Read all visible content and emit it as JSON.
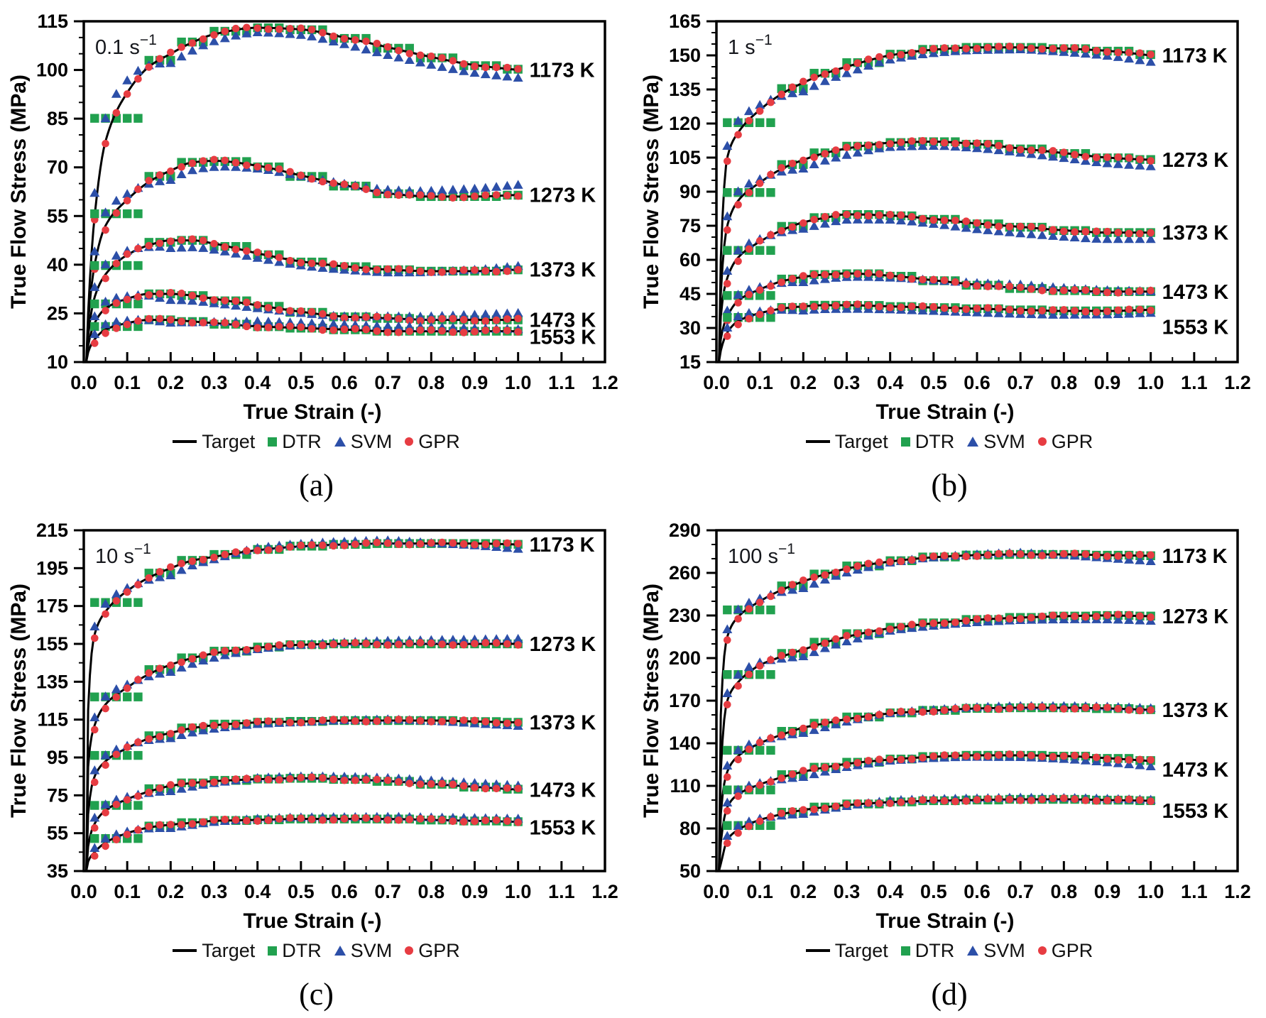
{
  "figure": {
    "background": "#ffffff",
    "ylabel": "True Flow Stress (MPa)",
    "xlabel": "True Strain (-)",
    "legend": [
      "Target",
      "DTR",
      "SVM",
      "GPR"
    ],
    "temperatures": [
      "1173 K",
      "1273 K",
      "1373 K",
      "1473 K",
      "1553 K"
    ],
    "colors": {
      "target": "#000000",
      "dtr": "#21A14F",
      "svm": "#2C4FA8",
      "gpr": "#E73C42"
    },
    "captions": [
      "(a)",
      "(b)",
      "(c)",
      "(d)"
    ],
    "marker_start": 0.025,
    "marker_step": 0.025,
    "marker_end": 1.0,
    "control_strains": [
      0.01,
      0.025,
      0.05,
      0.1,
      0.15,
      0.2,
      0.25,
      0.3,
      0.4,
      0.5,
      0.6,
      0.7,
      0.8,
      0.9,
      1.0
    ],
    "dtr_bin_edges": [
      0.02,
      0.14,
      0.22,
      0.3,
      0.38,
      0.47,
      0.57,
      0.67,
      0.77,
      0.87,
      0.97,
      1.005
    ],
    "svm_dev_strains": [
      0.05,
      0.2,
      0.4,
      0.7,
      1.0
    ]
  },
  "chart_data": [
    {
      "type": "line",
      "panel": "a",
      "caption": "(a)",
      "strain_rate": {
        "base": "0.1 s",
        "exp": "−1"
      },
      "xlabel": "True Strain (-)",
      "ylabel": "True Flow Stress (MPa)",
      "xlim": [
        0.0,
        1.2
      ],
      "xstep": 0.1,
      "x_minor_step": 0.05,
      "ylim": [
        10,
        115
      ],
      "ystep": 15,
      "y_minor_step": 5,
      "legend": [
        "Target",
        "DTR",
        "SVM",
        "GPR"
      ],
      "gpr_dip": 1.5,
      "gpr_amp": 0.4,
      "series": [
        {
          "temperature": "1173 K",
          "label_dy": 0,
          "target": [
            25,
            55,
            78,
            93,
            101,
            105,
            108.5,
            111,
            113,
            112.5,
            110,
            107,
            104,
            101.5,
            100
          ],
          "svm_dev": [
            7,
            -3,
            -1.5,
            -2.5,
            -2.5
          ]
        },
        {
          "temperature": "1273 K",
          "label_dy": 0,
          "target": [
            22,
            40,
            52,
            60,
            65.5,
            69,
            71.5,
            72,
            70.5,
            67.5,
            64.5,
            62,
            61,
            61,
            61.5
          ],
          "svm_dev": [
            4,
            -3,
            -1,
            1,
            3
          ]
        },
        {
          "temperature": "1373 K",
          "label_dy": 0,
          "target": [
            18,
            30,
            37,
            43,
            46,
            47.5,
            47.5,
            46.5,
            43.5,
            41,
            39.5,
            38.5,
            38,
            38,
            38.5
          ],
          "svm_dev": [
            3,
            -2.5,
            -1.5,
            -1,
            1
          ]
        },
        {
          "temperature": "1473 K",
          "label_dy": 0,
          "target": [
            15,
            22,
            26.5,
            29.5,
            31,
            31,
            30.5,
            29.5,
            27.5,
            25.5,
            24,
            23.5,
            23,
            23,
            23
          ],
          "svm_dev": [
            2,
            -2,
            -1,
            0.5,
            2
          ]
        },
        {
          "temperature": "1553 K",
          "label_dy": 8,
          "target": [
            13,
            17,
            20,
            22,
            23,
            23,
            22.5,
            22,
            21,
            20.5,
            20,
            19.5,
            19.5,
            19.5,
            19.5
          ],
          "svm_dev": [
            1.5,
            -1,
            1.5,
            1.5,
            0.5
          ]
        }
      ]
    },
    {
      "type": "line",
      "panel": "b",
      "caption": "(b)",
      "strain_rate": {
        "base": "1 s",
        "exp": "−1"
      },
      "xlabel": "True Strain (-)",
      "ylabel": "True Flow Stress (MPa)",
      "xlim": [
        0.0,
        1.2
      ],
      "xstep": 0.1,
      "x_minor_step": 0.05,
      "ylim": [
        15,
        165
      ],
      "ystep": 15,
      "y_minor_step": 5,
      "legend": [
        "Target",
        "DTR",
        "SVM",
        "GPR"
      ],
      "gpr_dip": 2,
      "gpr_amp": 0.5,
      "series": [
        {
          "temperature": "1173 K",
          "label_dy": 0,
          "target": [
            60,
            105,
            116,
            126,
            133,
            138,
            142,
            145,
            150,
            152.5,
            153.5,
            153.5,
            153,
            152,
            150
          ],
          "svm_dev": [
            5,
            -4,
            -2,
            -1,
            -3
          ]
        },
        {
          "temperature": "1273 K",
          "label_dy": 0,
          "target": [
            45,
            75,
            86,
            94,
            100,
            104,
            107,
            109,
            111.5,
            112,
            111,
            109,
            107,
            105,
            104
          ],
          "svm_dev": [
            4,
            -4,
            -2,
            -2,
            -3
          ]
        },
        {
          "temperature": "1373 K",
          "label_dy": 0,
          "target": [
            35,
            52,
            61,
            68,
            73,
            76.5,
            78.5,
            80,
            79.5,
            78,
            76,
            74.5,
            73,
            72,
            72
          ],
          "svm_dev": [
            3,
            -3,
            -2,
            -3,
            -3
          ]
        },
        {
          "temperature": "1473 K",
          "label_dy": 0,
          "target": [
            25,
            35,
            42,
            47,
            50.5,
            52.5,
            53.5,
            54,
            53,
            51,
            49,
            47.5,
            46.5,
            46,
            46
          ],
          "svm_dev": [
            2.5,
            -2.5,
            -1,
            1.5,
            0
          ]
        },
        {
          "temperature": "1553 K",
          "label_dy": 24,
          "target": [
            20,
            28,
            33,
            36.5,
            38.5,
            39.5,
            40,
            40,
            39.5,
            39,
            38.5,
            38,
            37.5,
            37.5,
            38
          ],
          "svm_dev": [
            2,
            -2,
            -1.5,
            -2,
            -1.5
          ]
        }
      ]
    },
    {
      "type": "line",
      "panel": "c",
      "caption": "(c)",
      "strain_rate": {
        "base": "10 s",
        "exp": "−1"
      },
      "xlabel": "True Strain (-)",
      "ylabel": "True Flow Stress (MPa)",
      "xlim": [
        0.0,
        1.2
      ],
      "xstep": 0.1,
      "x_minor_step": 0.05,
      "ylim": [
        35,
        215
      ],
      "ystep": 20,
      "y_minor_step": 10,
      "legend": [
        "Target",
        "DTR",
        "SVM",
        "GPR"
      ],
      "gpr_dip": 2.5,
      "gpr_amp": 0.6,
      "series": [
        {
          "temperature": "1173 K",
          "label_dy": 0,
          "target": [
            120,
            160,
            172,
            183,
            190,
            195,
            199,
            201,
            204.5,
            206.5,
            207.5,
            208,
            208,
            208,
            207.5
          ],
          "svm_dev": [
            4,
            -4,
            1,
            1.5,
            -2.5
          ]
        },
        {
          "temperature": "1273 K",
          "label_dy": 0,
          "target": [
            90,
            112,
            123,
            132,
            139,
            144,
            147.5,
            150,
            153,
            154.5,
            155,
            155,
            155,
            155,
            155
          ],
          "svm_dev": [
            4,
            -4,
            -1,
            1.5,
            2.5
          ]
        },
        {
          "temperature": "1373 K",
          "label_dy": 0,
          "target": [
            65,
            85,
            93,
            100,
            105,
            108,
            110.5,
            112,
            113.5,
            114,
            114.5,
            114.5,
            114.5,
            114,
            113.5
          ],
          "svm_dev": [
            3,
            -3,
            -1,
            0.5,
            -2
          ]
        },
        {
          "temperature": "1473 K",
          "label_dy": 0,
          "target": [
            48,
            60,
            67,
            73,
            77,
            80,
            81.5,
            82.5,
            83.5,
            84,
            83.5,
            82.5,
            81,
            79.5,
            78
          ],
          "svm_dev": [
            3,
            -3,
            0.5,
            1.5,
            2
          ]
        },
        {
          "temperature": "1553 K",
          "label_dy": 8,
          "target": [
            40,
            45,
            50,
            55,
            58,
            59.5,
            60.5,
            61.5,
            62,
            62.5,
            62.5,
            62.5,
            62,
            61.5,
            61
          ],
          "svm_dev": [
            2,
            -2,
            0.5,
            1,
            1.5
          ]
        }
      ]
    },
    {
      "type": "line",
      "panel": "d",
      "caption": "(d)",
      "strain_rate": {
        "base": "100 s",
        "exp": "−1"
      },
      "xlabel": "True Strain (-)",
      "ylabel": "True Flow Stress (MPa)",
      "xlim": [
        0.0,
        1.2
      ],
      "xstep": 0.1,
      "x_minor_step": 0.05,
      "ylim": [
        50,
        290
      ],
      "ystep": 30,
      "y_minor_step": 10,
      "legend": [
        "Target",
        "DTR",
        "SVM",
        "GPR"
      ],
      "gpr_dip": 3,
      "gpr_amp": 0.8,
      "series": [
        {
          "temperature": "1173 K",
          "label_dy": 0,
          "target": [
            160,
            215,
            229,
            240,
            248,
            254,
            259,
            263,
            268,
            271,
            272.5,
            273,
            273,
            272.5,
            272
          ],
          "svm_dev": [
            5,
            -5,
            -1,
            1,
            -4
          ]
        },
        {
          "temperature": "1273 K",
          "label_dy": 0,
          "target": [
            120,
            170,
            183,
            195,
            201,
            206,
            211,
            215,
            221,
            224.5,
            227,
            228.5,
            229.5,
            230,
            229.5
          ],
          "svm_dev": [
            5,
            -5,
            -2,
            -2,
            -3.5
          ]
        },
        {
          "temperature": "1373 K",
          "label_dy": 0,
          "target": [
            90,
            120,
            131,
            140,
            146,
            151,
            154,
            157,
            161,
            163,
            164.5,
            165,
            165,
            164.5,
            163.5
          ],
          "svm_dev": [
            4,
            -4,
            0,
            1,
            1
          ]
        },
        {
          "temperature": "1473 K",
          "label_dy": 12,
          "target": [
            70,
            95,
            104,
            111,
            116,
            120,
            123,
            125.5,
            128.5,
            130.5,
            131.5,
            131.5,
            131,
            129.5,
            127.5
          ],
          "svm_dev": [
            3,
            -4,
            -1,
            -1.5,
            -4
          ]
        },
        {
          "temperature": "1553 K",
          "label_dy": 14,
          "target": [
            55,
            72,
            79,
            86,
            90,
            93,
            95,
            96.5,
            98.5,
            99.5,
            100,
            100.5,
            100.5,
            100,
            99.5
          ],
          "svm_dev": [
            2.5,
            -3,
            1,
            1,
            0.5
          ]
        }
      ]
    }
  ]
}
